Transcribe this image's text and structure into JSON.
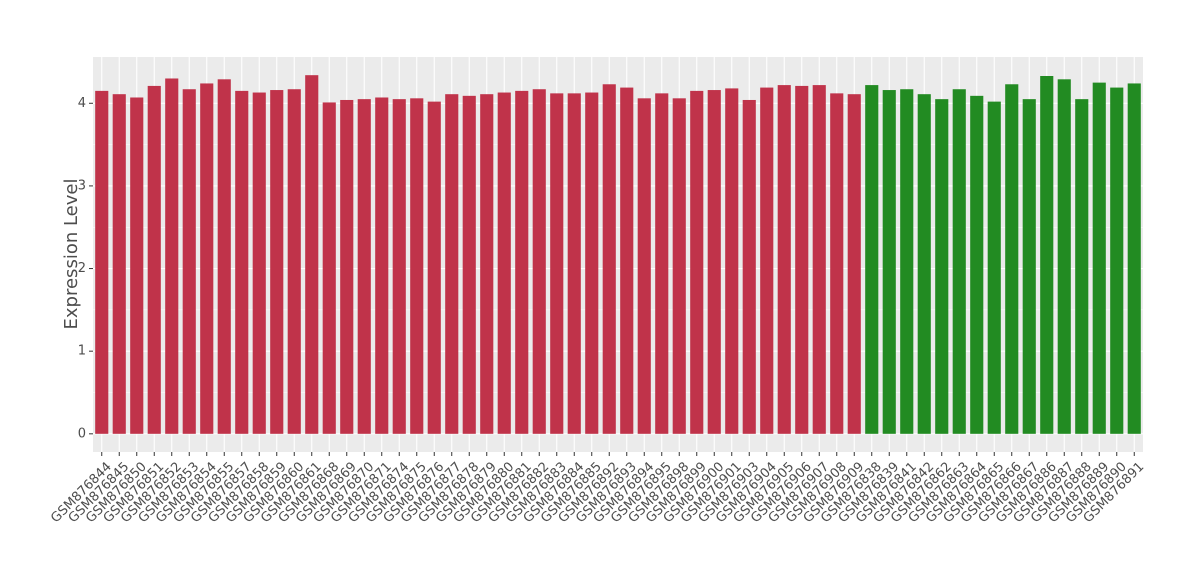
{
  "chart_data": {
    "type": "bar",
    "y_label": "Expression Level",
    "categories": [
      "GSM876844",
      "GSM876845",
      "GSM876850",
      "GSM876851",
      "GSM876852",
      "GSM876853",
      "GSM876854",
      "GSM876855",
      "GSM876857",
      "GSM876858",
      "GSM876859",
      "GSM876860",
      "GSM876861",
      "GSM876868",
      "GSM876869",
      "GSM876870",
      "GSM876871",
      "GSM876874",
      "GSM876875",
      "GSM876876",
      "GSM876877",
      "GSM876878",
      "GSM876879",
      "GSM876880",
      "GSM876881",
      "GSM876882",
      "GSM876883",
      "GSM876884",
      "GSM876885",
      "GSM876892",
      "GSM876893",
      "GSM876894",
      "GSM876895",
      "GSM876898",
      "GSM876899",
      "GSM876900",
      "GSM876901",
      "GSM876903",
      "GSM876904",
      "GSM876905",
      "GSM876906",
      "GSM876907",
      "GSM876908",
      "GSM876909",
      "GSM876838",
      "GSM876839",
      "GSM876841",
      "GSM876842",
      "GSM876862",
      "GSM876863",
      "GSM876864",
      "GSM876865",
      "GSM876866",
      "GSM876867",
      "GSM876886",
      "GSM876887",
      "GSM876888",
      "GSM876889",
      "GSM876890",
      "GSM876891"
    ],
    "values": [
      4.15,
      4.11,
      4.07,
      4.21,
      4.3,
      4.17,
      4.24,
      4.29,
      4.15,
      4.13,
      4.16,
      4.17,
      4.34,
      4.01,
      4.04,
      4.05,
      4.07,
      4.05,
      4.06,
      4.02,
      4.11,
      4.09,
      4.11,
      4.13,
      4.15,
      4.17,
      4.12,
      4.12,
      4.13,
      4.23,
      4.19,
      4.06,
      4.12,
      4.06,
      4.15,
      4.16,
      4.18,
      4.04,
      4.19,
      4.22,
      4.21,
      4.22,
      4.12,
      4.11,
      4.22,
      4.16,
      4.17,
      4.11,
      4.05,
      4.17,
      4.09,
      4.02,
      4.23,
      4.05,
      4.33,
      4.29,
      4.05,
      4.25,
      4.19,
      4.24
    ],
    "colors": [
      "#c0334a",
      "#c0334a",
      "#c0334a",
      "#c0334a",
      "#c0334a",
      "#c0334a",
      "#c0334a",
      "#c0334a",
      "#c0334a",
      "#c0334a",
      "#c0334a",
      "#c0334a",
      "#c0334a",
      "#c0334a",
      "#c0334a",
      "#c0334a",
      "#c0334a",
      "#c0334a",
      "#c0334a",
      "#c0334a",
      "#c0334a",
      "#c0334a",
      "#c0334a",
      "#c0334a",
      "#c0334a",
      "#c0334a",
      "#c0334a",
      "#c0334a",
      "#c0334a",
      "#c0334a",
      "#c0334a",
      "#c0334a",
      "#c0334a",
      "#c0334a",
      "#c0334a",
      "#c0334a",
      "#c0334a",
      "#c0334a",
      "#c0334a",
      "#c0334a",
      "#c0334a",
      "#c0334a",
      "#c0334a",
      "#c0334a",
      "#228b22",
      "#228b22",
      "#228b22",
      "#228b22",
      "#228b22",
      "#228b22",
      "#228b22",
      "#228b22",
      "#228b22",
      "#228b22",
      "#228b22",
      "#228b22",
      "#228b22",
      "#228b22",
      "#228b22",
      "#228b22"
    ],
    "ylim": [
      -0.22,
      4.56
    ],
    "yticks": [
      0,
      1,
      2,
      3,
      4
    ],
    "grid": true
  }
}
